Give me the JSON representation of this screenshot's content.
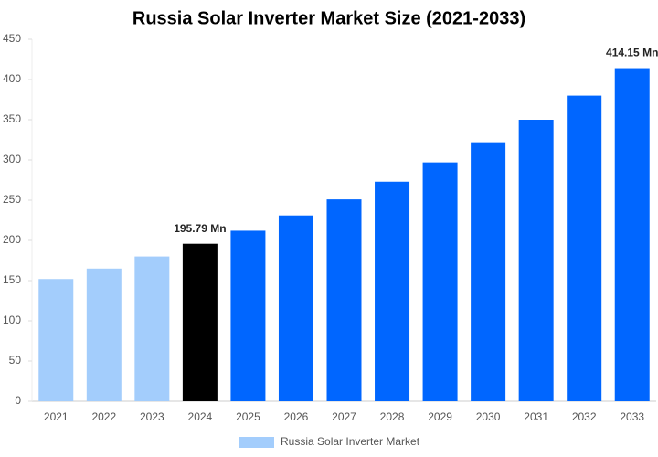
{
  "chart_data": {
    "type": "bar",
    "title": "Russia Solar Inverter Market Size (2021-2033)",
    "categories": [
      "2021",
      "2022",
      "2023",
      "2024",
      "2025",
      "2026",
      "2027",
      "2028",
      "2029",
      "2030",
      "2031",
      "2032",
      "2033"
    ],
    "series": [
      {
        "name": "Russia Solar Inverter Market",
        "color": "#a3cdfc",
        "values": [
          152,
          165,
          180,
          195.79,
          212,
          231,
          251,
          273,
          297,
          322,
          350,
          380,
          414.15
        ],
        "colors": [
          "#a3cdfc",
          "#a3cdfc",
          "#a3cdfc",
          "#000000",
          "#0066ff",
          "#0066ff",
          "#0066ff",
          "#0066ff",
          "#0066ff",
          "#0066ff",
          "#0066ff",
          "#0066ff",
          "#0066ff"
        ],
        "value_labels": [
          null,
          null,
          null,
          "195.79 Mn",
          null,
          null,
          null,
          null,
          null,
          null,
          null,
          null,
          "414.15 Mn"
        ]
      }
    ],
    "ylim": [
      0,
      450
    ],
    "yticks": [
      0,
      50,
      100,
      150,
      200,
      250,
      300,
      350,
      400,
      450
    ],
    "grid": false
  }
}
